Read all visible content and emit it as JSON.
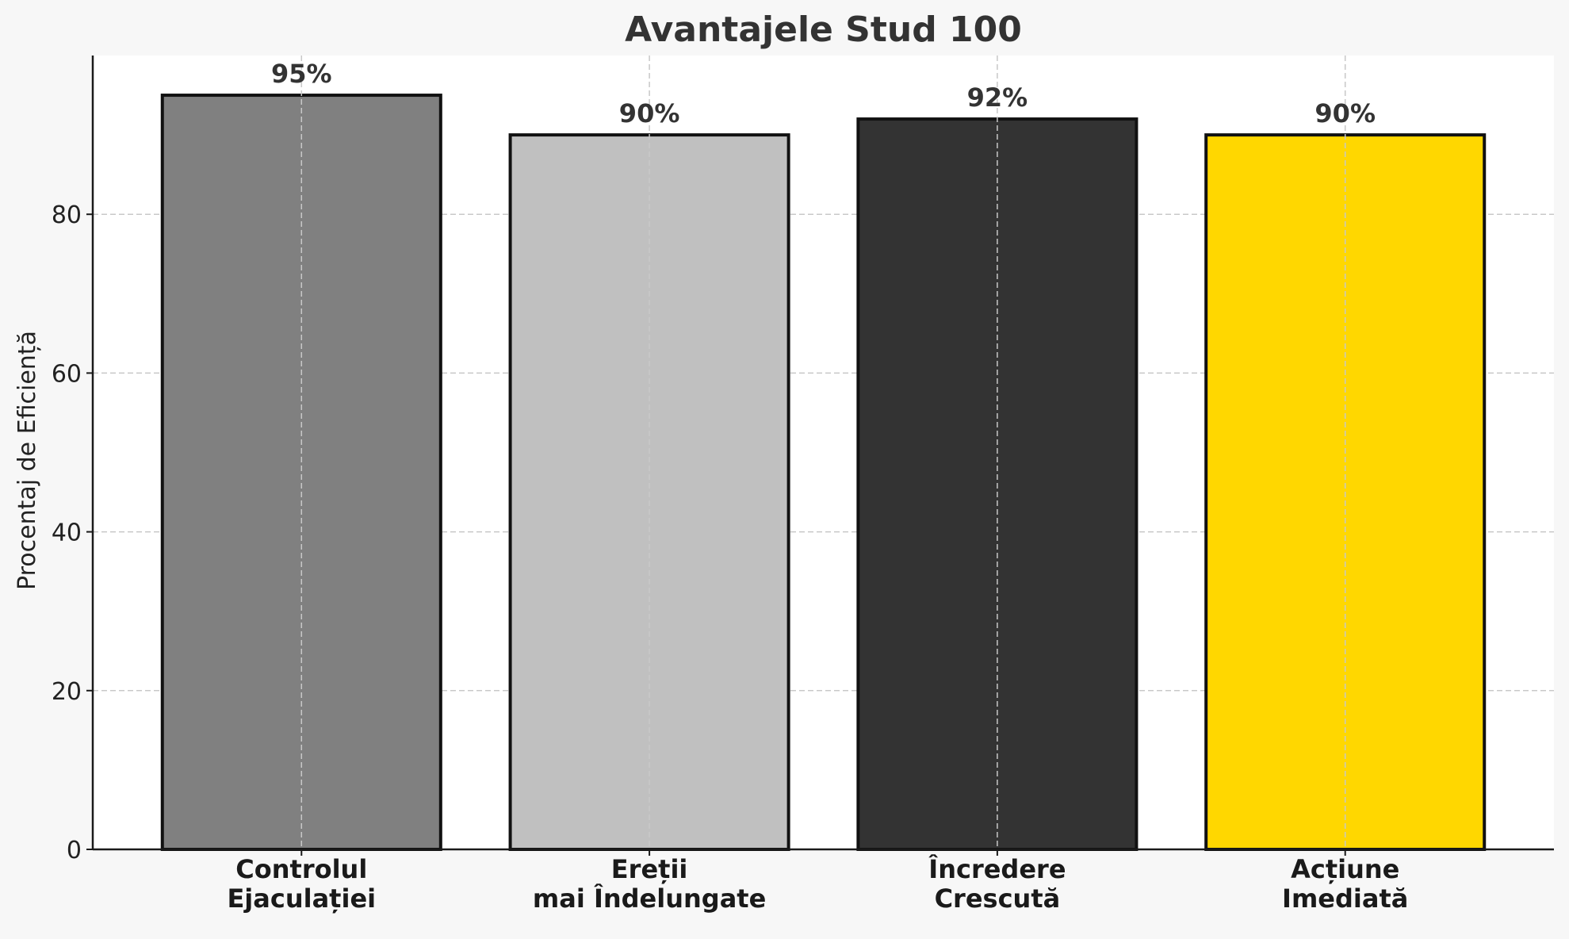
{
  "chart_data": {
    "type": "bar",
    "title": "Avantajele Stud 100",
    "ylabel": "Procentaj de Eficiență",
    "xlabel": "",
    "categories": [
      [
        "Controlul",
        "Ejaculației"
      ],
      [
        "Ereții",
        "mai Îndelungate"
      ],
      [
        "Încredere",
        "Crescută"
      ],
      [
        "Acțiune",
        "Imediată"
      ]
    ],
    "values": [
      95,
      90,
      92,
      90
    ],
    "value_labels": [
      "95%",
      "90%",
      "92%",
      "90%"
    ],
    "colors": [
      "#808080",
      "#c0c0c0",
      "#333333",
      "#ffd700"
    ],
    "ylim": [
      0,
      100
    ],
    "yticks": [
      0,
      20,
      40,
      60,
      80
    ],
    "grid": true
  }
}
